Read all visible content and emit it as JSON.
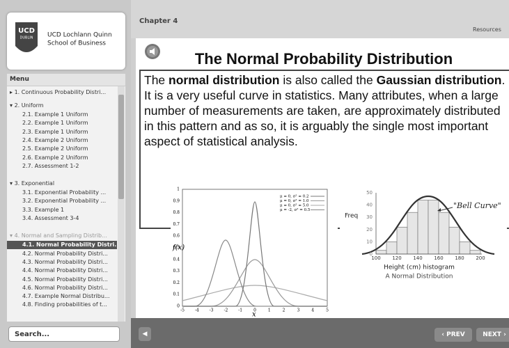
{
  "sidebar": {
    "logo": {
      "badge_top": "UCD",
      "badge_bottom": "DUBLIN",
      "line1": "UCD Lochlann Quinn",
      "line2": "School of Business"
    },
    "menu_title": "Menu",
    "menu": [
      {
        "label": "1. Continuous Probability Distri...",
        "expanded": false,
        "items": []
      },
      {
        "label": "2. Uniform",
        "expanded": true,
        "items": [
          "2.1. Example 1 Uniform",
          "2.2. Example 1 Uniform",
          "2.3. Example 1 Uniform",
          "2.4. Example 2 Uniform",
          "2.5. Example 2 Uniform",
          "2.6. Example 2 Uniform",
          "2.7. Assessment 1-2"
        ]
      },
      {
        "label": "3. Exponential",
        "expanded": true,
        "items": [
          "3.1. Exponential Probability ...",
          "3.2. Exponential Probability ...",
          "3.3. Example 1",
          "3.4. Assessment 3-4"
        ]
      },
      {
        "label": "4. Normal and Sampling Distrib...",
        "expanded": true,
        "items": [
          "4.1. Normal Probability Distri...",
          "4.2. Normal Probability Distri...",
          "4.3. Normal Probability Distri...",
          "4.4. Normal Probability Distri...",
          "4.5. Normal Probability Distri...",
          "4.6. Normal Probability Distri...",
          "4.7. Example Normal Distribu...",
          "4.8. Finding probabilities of t..."
        ]
      }
    ],
    "selected": [
      3,
      0
    ],
    "search_placeholder": "Search..."
  },
  "header": {
    "chapter": "Chapter 4",
    "resources": "Resources"
  },
  "slide": {
    "title": "The Normal Probability Distribution",
    "paragraph": [
      {
        "text": "The "
      },
      {
        "text": "normal distribution",
        "bold": true
      },
      {
        "text": " is also called the "
      },
      {
        "text": "Gaussian distribution",
        "bold": true
      },
      {
        "text": ". It is a very useful curve in statistics. Many attributes, when a large number of measurements are taken, are approximately distributed in this pattern and as so, it is arguably the single most important aspect of statistical analysis."
      }
    ],
    "figure_left": {
      "y_label": "f(x)",
      "x_label": "x",
      "xticks": [
        "-5",
        "-4",
        "-3",
        "-2",
        "-1",
        "0",
        "1",
        "2",
        "3",
        "4",
        "5"
      ],
      "yticks": [
        "0",
        "0.1",
        "0.2",
        "0.3",
        "0.4",
        "0.5",
        "0.6",
        "0.7",
        "0.8",
        "0.9",
        "1"
      ],
      "legend": [
        "μ = 0, σ² = 0.2",
        "μ = 0, σ² = 1.0",
        "μ = 0, σ² = 5.0",
        "μ = -2, σ² = 0.5"
      ]
    },
    "figure_right": {
      "y_label": "Freq",
      "annotation": "\"Bell Curve\"",
      "xticks": [
        "100",
        "120",
        "140",
        "160",
        "180",
        "200"
      ],
      "yticks": [
        "0",
        "10",
        "20",
        "30",
        "40",
        "50"
      ],
      "caption1": "Height (cm) histogram",
      "caption2": "A Normal Distribution"
    }
  },
  "nav": {
    "prev": "PREV",
    "next": "NEXT"
  }
}
